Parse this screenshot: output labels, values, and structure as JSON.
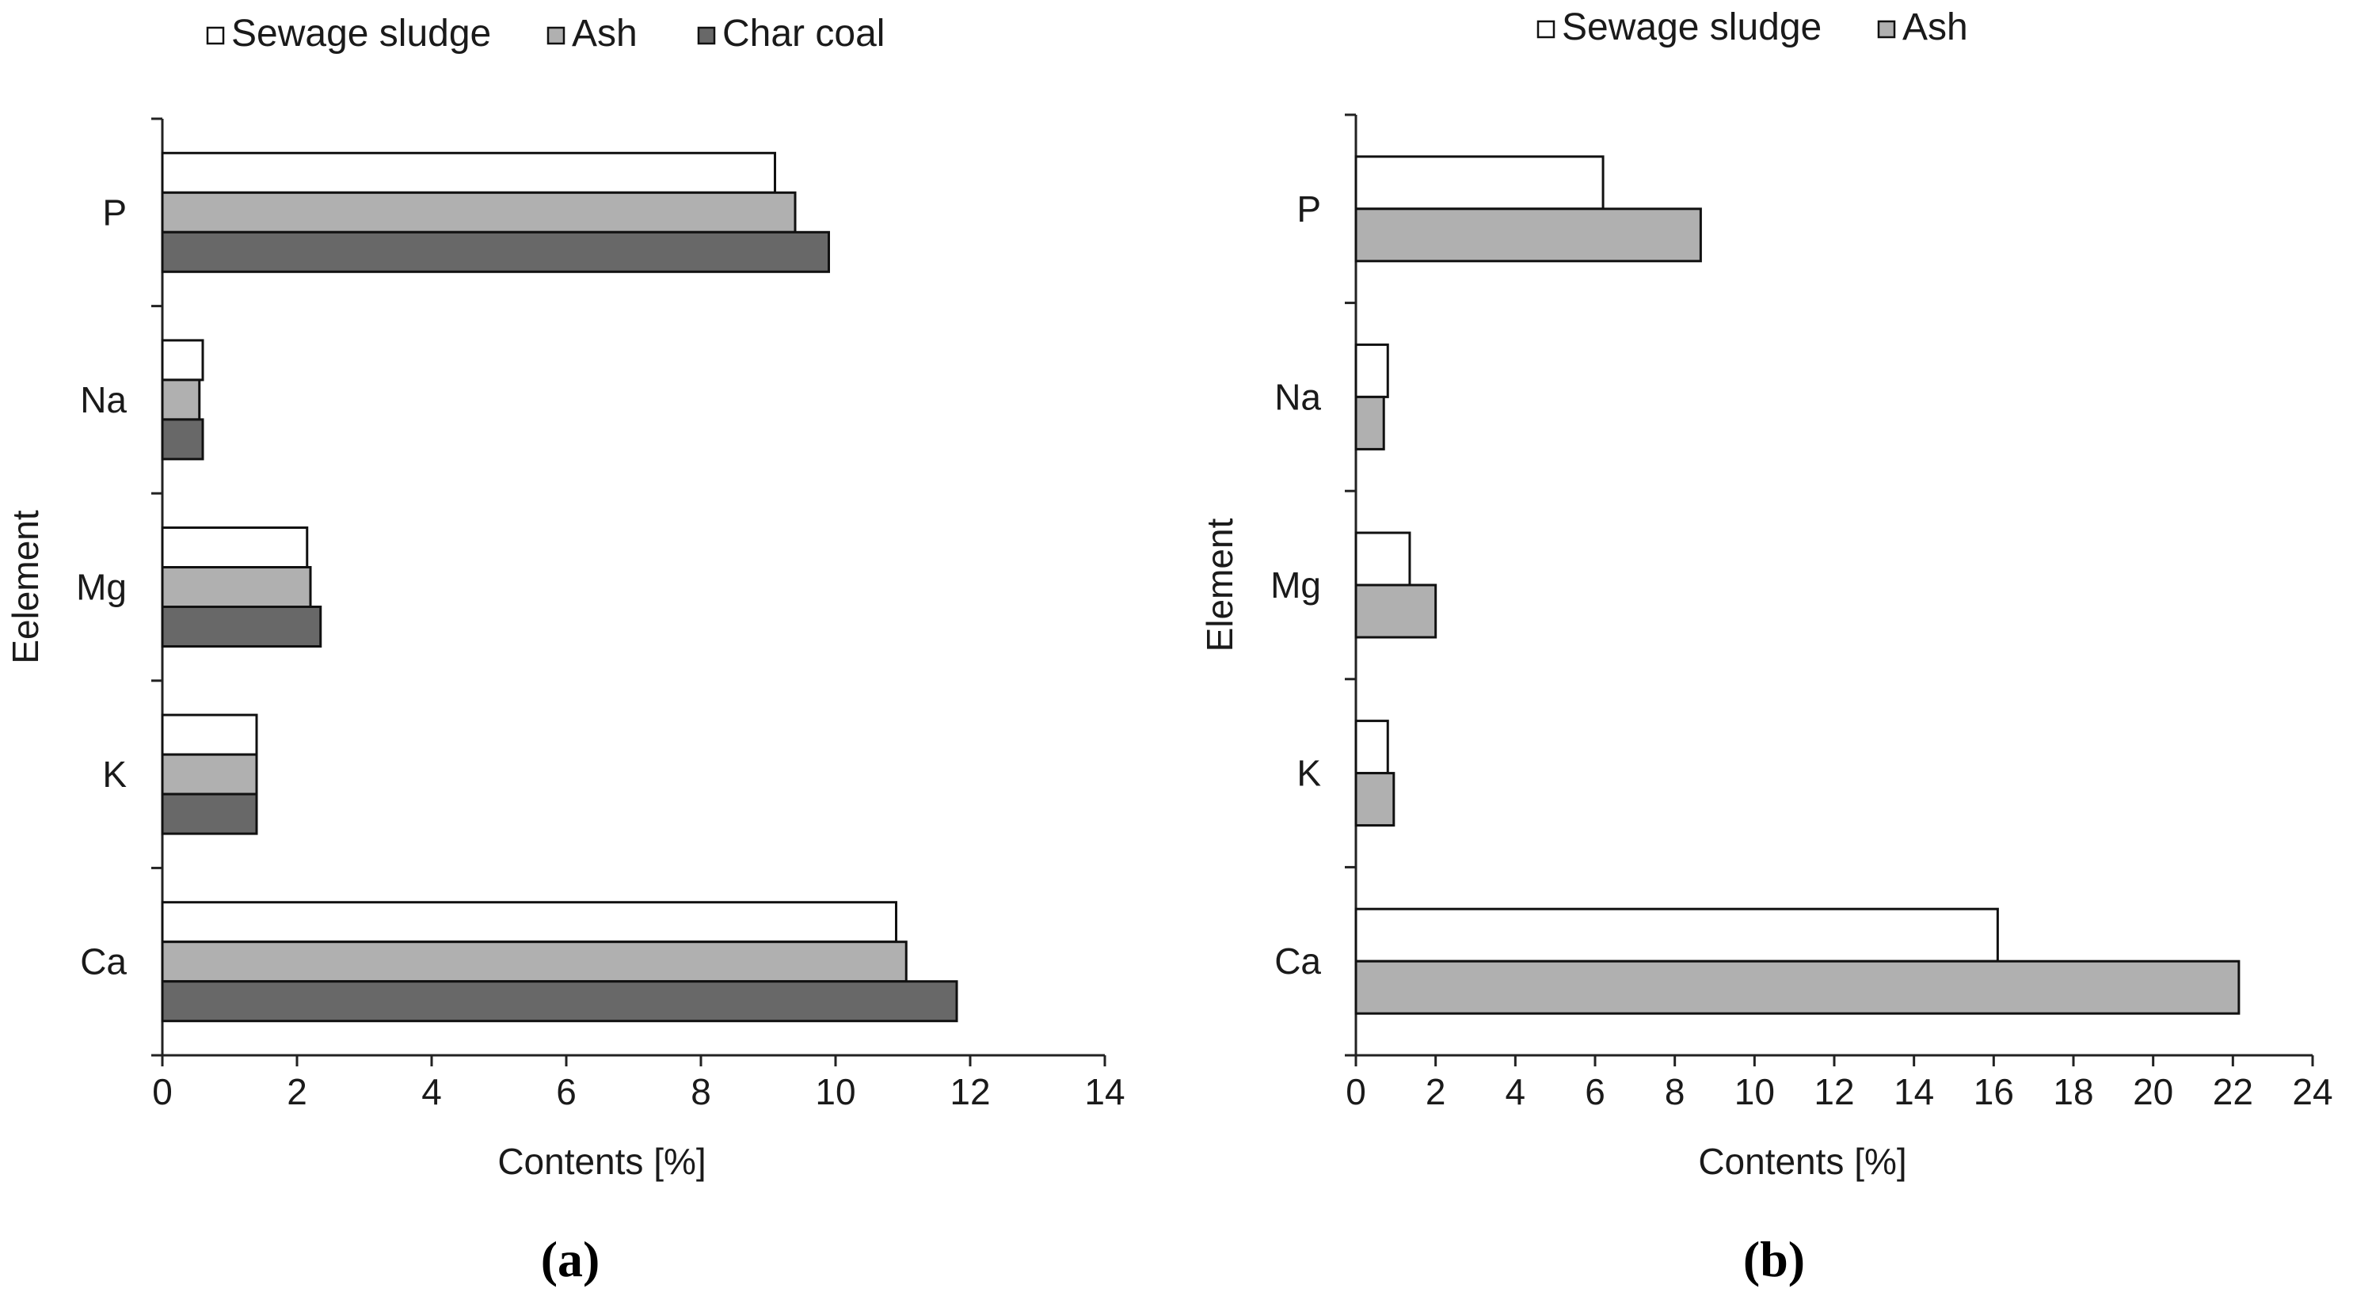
{
  "colors": {
    "Sewage sludge": "#ffffff",
    "Ash": "#b0b0b0",
    "Char coal": "#686868"
  },
  "chart_data": [
    {
      "type": "bar",
      "orientation": "horizontal",
      "panel_label": "(a)",
      "categories": [
        "P",
        "Na",
        "Mg",
        "K",
        "Ca"
      ],
      "series": [
        {
          "name": "Sewage sludge",
          "values": [
            9.1,
            0.6,
            2.15,
            1.4,
            10.9
          ]
        },
        {
          "name": "Ash",
          "values": [
            9.4,
            0.55,
            2.2,
            1.4,
            11.05
          ]
        },
        {
          "name": "Char coal",
          "values": [
            9.9,
            0.6,
            2.35,
            1.4,
            11.8
          ]
        }
      ],
      "xlabel": "Contents [%]",
      "ylabel": "Eelement",
      "xlim": [
        0,
        14
      ],
      "xticks": [
        "0",
        "2",
        "4",
        "6",
        "8",
        "10",
        "12",
        "14"
      ],
      "legend": [
        "Sewage sludge",
        "Ash",
        "Char coal"
      ]
    },
    {
      "type": "bar",
      "orientation": "horizontal",
      "panel_label": "(b)",
      "categories": [
        "P",
        "Na",
        "Mg",
        "K",
        "Ca"
      ],
      "series": [
        {
          "name": "Sewage sludge",
          "values": [
            6.2,
            0.8,
            1.35,
            0.8,
            16.1
          ]
        },
        {
          "name": "Ash",
          "values": [
            8.65,
            0.7,
            2.0,
            0.95,
            22.15
          ]
        }
      ],
      "xlabel": "Contents [%]",
      "ylabel": "Element",
      "xlim": [
        0,
        24
      ],
      "xticks": [
        "0",
        "2",
        "4",
        "6",
        "8",
        "10",
        "12",
        "14",
        "16",
        "18",
        "20",
        "22",
        "24"
      ],
      "legend": [
        "Sewage sludge",
        "Ash"
      ]
    }
  ]
}
